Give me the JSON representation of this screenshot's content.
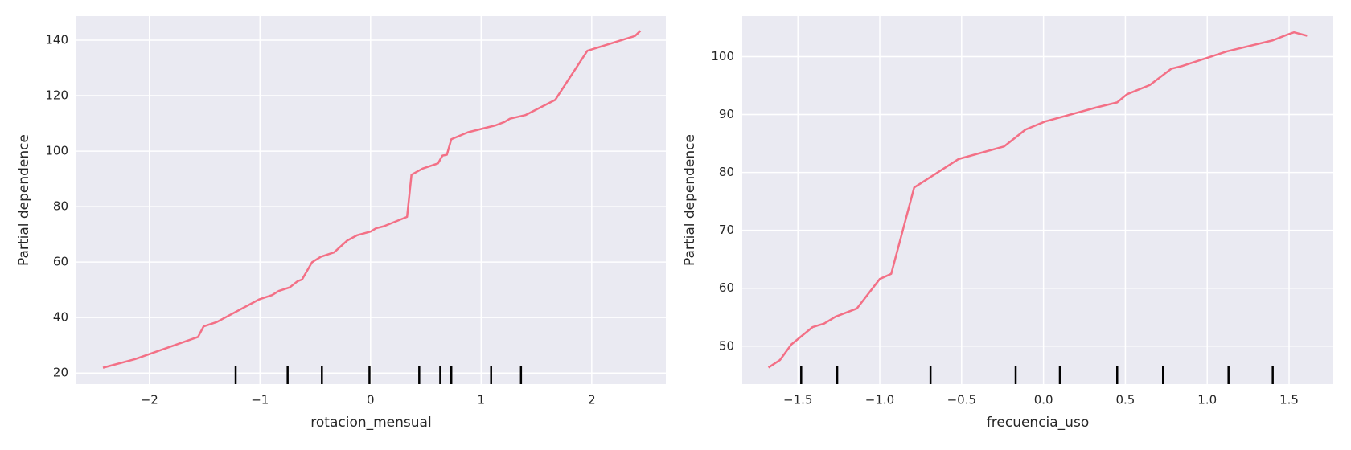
{
  "chart_data": [
    {
      "type": "line",
      "xlabel": "rotacion_mensual",
      "ylabel": "Partial dependence",
      "color": "#f37086",
      "rug_color": "#000000",
      "grid": true,
      "x": [
        -2.42,
        -2.13,
        -1.56,
        -1.51,
        -1.39,
        -1.01,
        -0.89,
        -0.83,
        -0.73,
        -0.66,
        -0.62,
        -0.53,
        -0.45,
        -0.33,
        -0.21,
        -0.12,
        0.0,
        0.05,
        0.12,
        0.33,
        0.37,
        0.47,
        0.61,
        0.65,
        0.69,
        0.73,
        0.88,
        1.13,
        1.21,
        1.26,
        1.4,
        1.67,
        1.96,
        2.39,
        2.44
      ],
      "values": [
        21.9,
        25,
        33,
        36.8,
        38.4,
        46.5,
        48.1,
        49.6,
        50.9,
        53.1,
        53.7,
        59.9,
        61.9,
        63.5,
        67.8,
        69.7,
        71,
        72.2,
        72.9,
        76.3,
        91.5,
        93.7,
        95.6,
        98.4,
        98.7,
        104.3,
        106.8,
        109.3,
        110.5,
        111.7,
        113,
        118.5,
        136.2,
        141.5,
        143.4
      ],
      "deciles": [
        -1.22,
        -0.75,
        -0.44,
        -0.01,
        0.44,
        0.63,
        0.73,
        1.09,
        1.36
      ],
      "xlim": [
        -2.66,
        2.67
      ],
      "ylim": [
        16,
        148.7
      ],
      "xticks": [
        {
          "value": -2,
          "label": "−2"
        },
        {
          "value": -1,
          "label": "−1"
        },
        0,
        1,
        2
      ],
      "yticks": [
        20,
        40,
        60,
        80,
        100,
        120,
        140
      ]
    },
    {
      "type": "line",
      "xlabel": "frecuencia_uso",
      "ylabel": "Partial dependence",
      "color": "#f37086",
      "rug_color": "#000000",
      "grid": true,
      "x": [
        -1.68,
        -1.61,
        -1.54,
        -1.41,
        -1.34,
        -1.27,
        -1.14,
        -1.0,
        -0.93,
        -0.79,
        -0.52,
        -0.24,
        -0.11,
        0.01,
        0.32,
        0.45,
        0.51,
        0.65,
        0.78,
        0.85,
        1.12,
        1.4,
        1.48,
        1.53,
        1.61
      ],
      "values": [
        46.3,
        47.6,
        50.3,
        53.3,
        53.9,
        55.1,
        56.5,
        61.6,
        62.5,
        77.4,
        82.3,
        84.5,
        87.4,
        88.8,
        91.2,
        92.1,
        93.5,
        95.1,
        97.9,
        98.4,
        100.9,
        102.8,
        103.7,
        104.2,
        103.6
      ],
      "deciles": [
        -1.48,
        -1.26,
        -0.69,
        -0.17,
        0.1,
        0.45,
        0.73,
        1.13,
        1.4
      ],
      "xlim": [
        -1.84,
        1.77
      ],
      "ylim": [
        43.45,
        107
      ],
      "xticks": [
        {
          "value": -1.5,
          "label": "−1.5"
        },
        {
          "value": -1.0,
          "label": "−1.0"
        },
        {
          "value": -0.5,
          "label": "−0.5"
        },
        {
          "value": 0,
          "label": "0.0"
        },
        0.5,
        {
          "value": 1,
          "label": "1.0"
        },
        1.5
      ],
      "yticks": [
        50,
        60,
        70,
        80,
        90,
        100
      ]
    }
  ]
}
